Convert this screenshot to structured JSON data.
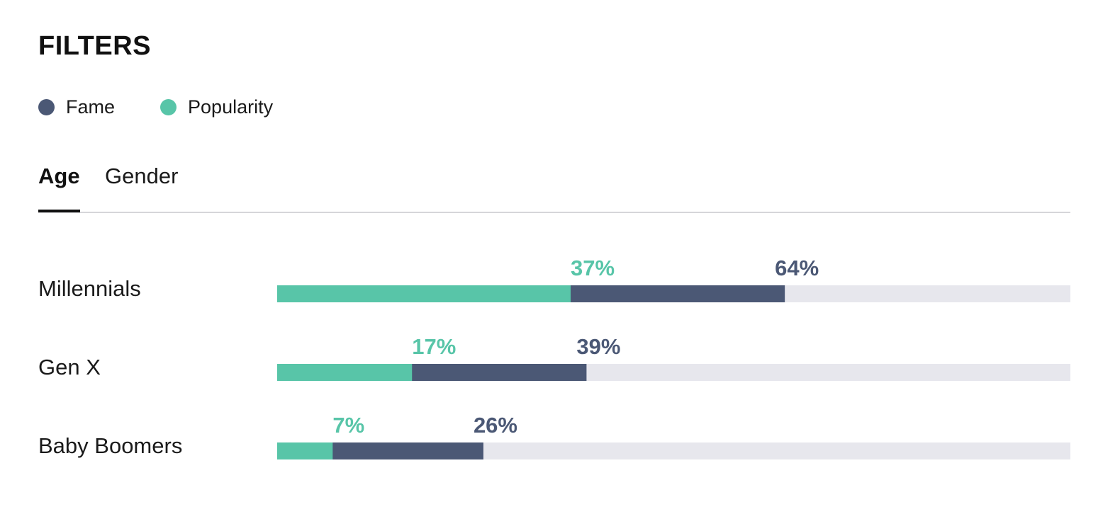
{
  "header": {
    "title": "FILTERS"
  },
  "legend": [
    {
      "label": "Fame",
      "color": "#4b5875"
    },
    {
      "label": "Popularity",
      "color": "#58c5a8"
    }
  ],
  "tabs": [
    {
      "label": "Age",
      "active": true
    },
    {
      "label": "Gender",
      "active": false
    }
  ],
  "colors": {
    "fame": "#4b5875",
    "popularity": "#58c5a8",
    "track": "#e7e7ed"
  },
  "chart_data": {
    "type": "bar",
    "orientation": "horizontal",
    "stacked": "overlay",
    "categories": [
      "Millennials",
      "Gen X",
      "Baby Boomers"
    ],
    "series": [
      {
        "name": "Popularity",
        "values": [
          37,
          17,
          7
        ],
        "labels": [
          "37%",
          "17%",
          "7%"
        ]
      },
      {
        "name": "Fame",
        "values": [
          64,
          39,
          26
        ],
        "labels": [
          "64%",
          "39%",
          "26%"
        ]
      }
    ],
    "xlim": [
      0,
      100
    ],
    "grid": false,
    "legend_position": "top-left"
  }
}
